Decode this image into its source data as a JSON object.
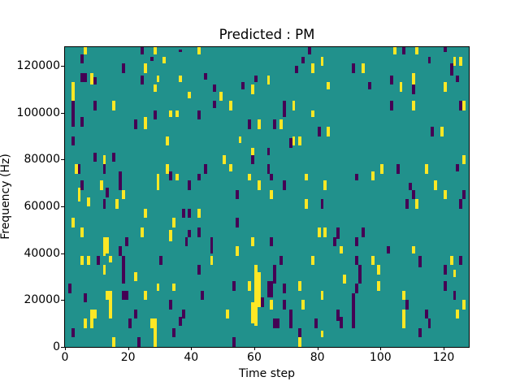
{
  "figure": {
    "title": "Predicted : PM",
    "xlabel": "Time step",
    "ylabel": "Frequency (Hz)"
  },
  "chart_data": {
    "type": "heatmap",
    "title": "Predicted : PM",
    "xlabel": "Time step",
    "ylabel": "Frequency (Hz)",
    "x_range": [
      0,
      128
    ],
    "y_range": [
      0,
      128000
    ],
    "x_ticks": [
      0,
      20,
      40,
      60,
      80,
      100,
      120
    ],
    "y_ticks": [
      0,
      20000,
      40000,
      60000,
      80000,
      100000,
      120000
    ],
    "grid": false,
    "legend_position": "none",
    "colors": {
      "background": "#21918c",
      "high": "#fde725",
      "low": "#440154"
    },
    "cells_format": "[time_step, freq_row_from_top (1 row = 1000 Hz, row 0 = 128000 Hz), row_span, value (1 = high/yellow, 0 = low/purple)]",
    "cells": [
      [
        6,
        0,
        3,
        1
      ],
      [
        28,
        0,
        3,
        1
      ],
      [
        31,
        4,
        3,
        1
      ],
      [
        25,
        7,
        4,
        1
      ],
      [
        8,
        11,
        5,
        1
      ],
      [
        29,
        12,
        3,
        1
      ],
      [
        36,
        12,
        3,
        1
      ],
      [
        2,
        15,
        8,
        1
      ],
      [
        28,
        16,
        3,
        1
      ],
      [
        39,
        19,
        3,
        1
      ],
      [
        15,
        23,
        4,
        1
      ],
      [
        33,
        27,
        3,
        1
      ],
      [
        35,
        27,
        3,
        1
      ],
      [
        5,
        31,
        3,
        1
      ],
      [
        25,
        30,
        5,
        1
      ],
      [
        32,
        38,
        4,
        1
      ],
      [
        24,
        0,
        3,
        0
      ],
      [
        36,
        1,
        1,
        0
      ],
      [
        5,
        3,
        4,
        0
      ],
      [
        27,
        4,
        2,
        0
      ],
      [
        18,
        7,
        4,
        0
      ],
      [
        5,
        11,
        4,
        0
      ],
      [
        6,
        11,
        4,
        0
      ],
      [
        24,
        12,
        4,
        0
      ],
      [
        9,
        13,
        3,
        0
      ],
      [
        2,
        23,
        11,
        0
      ],
      [
        9,
        23,
        4,
        0
      ],
      [
        28,
        27,
        4,
        0
      ],
      [
        5,
        30,
        4,
        0
      ],
      [
        22,
        31,
        4,
        0
      ],
      [
        2,
        38,
        4,
        0
      ],
      [
        42,
        0,
        3,
        1
      ],
      [
        81,
        4,
        4,
        1
      ],
      [
        78,
        7,
        4,
        1
      ],
      [
        64,
        12,
        4,
        1
      ],
      [
        59,
        16,
        4,
        1
      ],
      [
        49,
        19,
        4,
        1
      ],
      [
        52,
        23,
        4,
        1
      ],
      [
        72,
        23,
        4,
        1
      ],
      [
        83,
        15,
        3,
        1
      ],
      [
        78,
        27,
        3,
        1
      ],
      [
        61,
        31,
        4,
        1
      ],
      [
        68,
        31,
        4,
        1
      ],
      [
        83,
        34,
        4,
        1
      ],
      [
        72,
        38,
        4,
        1
      ],
      [
        74,
        38,
        4,
        1
      ],
      [
        55,
        38,
        3,
        1
      ],
      [
        77,
        0,
        3,
        0
      ],
      [
        75,
        4,
        3,
        0
      ],
      [
        73,
        8,
        3,
        0
      ],
      [
        44,
        11,
        3,
        0
      ],
      [
        47,
        16,
        3,
        0
      ],
      [
        56,
        15,
        3,
        0
      ],
      [
        60,
        12,
        3,
        0
      ],
      [
        47,
        23,
        3,
        0
      ],
      [
        69,
        23,
        7,
        0
      ],
      [
        42,
        27,
        4,
        0
      ],
      [
        58,
        31,
        4,
        0
      ],
      [
        66,
        31,
        4,
        0
      ],
      [
        80,
        34,
        4,
        0
      ],
      [
        71,
        39,
        4,
        0
      ],
      [
        104,
        0,
        3,
        1
      ],
      [
        111,
        0,
        3,
        1
      ],
      [
        123,
        4,
        4,
        1
      ],
      [
        125,
        4,
        4,
        1
      ],
      [
        94,
        7,
        4,
        1
      ],
      [
        110,
        11,
        5,
        1
      ],
      [
        106,
        15,
        4,
        1
      ],
      [
        120,
        15,
        4,
        1
      ],
      [
        110,
        23,
        4,
        1
      ],
      [
        126,
        23,
        4,
        1
      ],
      [
        119,
        34,
        4,
        1
      ],
      [
        107,
        0,
        3,
        0
      ],
      [
        120,
        0,
        2,
        0
      ],
      [
        115,
        4,
        3,
        0
      ],
      [
        91,
        7,
        4,
        0
      ],
      [
        122,
        7,
        5,
        0
      ],
      [
        103,
        12,
        4,
        0
      ],
      [
        96,
        15,
        3,
        0
      ],
      [
        124,
        12,
        3,
        0
      ],
      [
        110,
        16,
        4,
        0
      ],
      [
        103,
        23,
        4,
        0
      ],
      [
        125,
        23,
        4,
        0
      ],
      [
        116,
        34,
        4,
        0
      ],
      [
        12,
        46,
        4,
        1
      ],
      [
        3,
        50,
        4,
        1
      ],
      [
        11,
        57,
        4,
        1
      ],
      [
        4,
        60,
        6,
        1
      ],
      [
        18,
        61,
        4,
        1
      ],
      [
        16,
        65,
        4,
        1
      ],
      [
        7,
        64,
        4,
        1
      ],
      [
        32,
        50,
        4,
        1
      ],
      [
        29,
        54,
        7,
        1
      ],
      [
        35,
        54,
        3,
        1
      ],
      [
        25,
        69,
        4,
        1
      ],
      [
        2,
        73,
        4,
        1
      ],
      [
        5,
        77,
        4,
        1
      ],
      [
        24,
        77,
        4,
        1
      ],
      [
        34,
        73,
        4,
        1
      ],
      [
        33,
        78,
        5,
        1
      ],
      [
        12,
        81,
        4,
        1
      ],
      [
        13,
        81,
        4,
        1
      ],
      [
        9,
        45,
        4,
        0
      ],
      [
        15,
        45,
        4,
        0
      ],
      [
        4,
        50,
        4,
        0
      ],
      [
        12,
        50,
        4,
        0
      ],
      [
        17,
        53,
        8,
        0
      ],
      [
        5,
        57,
        4,
        0
      ],
      [
        13,
        60,
        4,
        0
      ],
      [
        12,
        65,
        4,
        0
      ],
      [
        33,
        53,
        4,
        0
      ],
      [
        39,
        57,
        4,
        0
      ],
      [
        37,
        69,
        4,
        0
      ],
      [
        39,
        69,
        4,
        0
      ],
      [
        39,
        78,
        3,
        0
      ],
      [
        19,
        81,
        4,
        0
      ],
      [
        38,
        81,
        4,
        0
      ],
      [
        59,
        43,
        3,
        1
      ],
      [
        50,
        46,
        4,
        1
      ],
      [
        52,
        50,
        3,
        1
      ],
      [
        58,
        54,
        3,
        1
      ],
      [
        61,
        57,
        4,
        1
      ],
      [
        65,
        61,
        4,
        1
      ],
      [
        76,
        54,
        3,
        1
      ],
      [
        82,
        57,
        4,
        1
      ],
      [
        76,
        65,
        4,
        1
      ],
      [
        42,
        69,
        4,
        1
      ],
      [
        80,
        77,
        4,
        1
      ],
      [
        82,
        77,
        4,
        1
      ],
      [
        59,
        81,
        4,
        1
      ],
      [
        64,
        43,
        3,
        0
      ],
      [
        59,
        46,
        4,
        0
      ],
      [
        44,
        50,
        4,
        0
      ],
      [
        42,
        54,
        3,
        0
      ],
      [
        64,
        50,
        4,
        0
      ],
      [
        65,
        54,
        3,
        0
      ],
      [
        69,
        57,
        4,
        0
      ],
      [
        54,
        61,
        4,
        0
      ],
      [
        81,
        65,
        4,
        0
      ],
      [
        54,
        73,
        4,
        0
      ],
      [
        42,
        77,
        4,
        0
      ],
      [
        46,
        81,
        4,
        0
      ],
      [
        65,
        81,
        4,
        0
      ],
      [
        126,
        46,
        4,
        1
      ],
      [
        100,
        50,
        4,
        1
      ],
      [
        114,
        50,
        4,
        1
      ],
      [
        97,
        53,
        4,
        1
      ],
      [
        117,
        57,
        4,
        1
      ],
      [
        120,
        61,
        4,
        1
      ],
      [
        111,
        65,
        4,
        1
      ],
      [
        92,
        54,
        3,
        0
      ],
      [
        105,
        50,
        4,
        0
      ],
      [
        124,
        50,
        3,
        0
      ],
      [
        109,
        58,
        3,
        0
      ],
      [
        110,
        61,
        4,
        0
      ],
      [
        108,
        65,
        4,
        0
      ],
      [
        126,
        61,
        4,
        0
      ],
      [
        125,
        65,
        4,
        0
      ],
      [
        86,
        77,
        5,
        0
      ],
      [
        94,
        77,
        4,
        0
      ],
      [
        92,
        81,
        4,
        0
      ],
      [
        85,
        81,
        4,
        0
      ],
      [
        12,
        85,
        4,
        1
      ],
      [
        13,
        85,
        3,
        1
      ],
      [
        5,
        89,
        4,
        1
      ],
      [
        7,
        89,
        4,
        1
      ],
      [
        14,
        89,
        3,
        1
      ],
      [
        12,
        93,
        4,
        1
      ],
      [
        22,
        96,
        4,
        1
      ],
      [
        13,
        104,
        4,
        1
      ],
      [
        14,
        104,
        12,
        1
      ],
      [
        8,
        112,
        4,
        1
      ],
      [
        9,
        112,
        4,
        1
      ],
      [
        6,
        116,
        4,
        1
      ],
      [
        8,
        116,
        4,
        1
      ],
      [
        25,
        104,
        4,
        1
      ],
      [
        29,
        101,
        3,
        1
      ],
      [
        34,
        101,
        3,
        1
      ],
      [
        27,
        116,
        4,
        1
      ],
      [
        28,
        116,
        12,
        1
      ],
      [
        15,
        124,
        4,
        1
      ],
      [
        17,
        85,
        4,
        0
      ],
      [
        10,
        89,
        4,
        0
      ],
      [
        18,
        89,
        4,
        0
      ],
      [
        30,
        89,
        4,
        0
      ],
      [
        18,
        93,
        4,
        0
      ],
      [
        18,
        97,
        4,
        0
      ],
      [
        1,
        101,
        4,
        0
      ],
      [
        6,
        105,
        4,
        0
      ],
      [
        18,
        104,
        4,
        0
      ],
      [
        19,
        104,
        4,
        0
      ],
      [
        33,
        108,
        4,
        0
      ],
      [
        20,
        116,
        4,
        0
      ],
      [
        22,
        112,
        4,
        0
      ],
      [
        37,
        112,
        4,
        0
      ],
      [
        36,
        115,
        4,
        0
      ],
      [
        2,
        120,
        4,
        0
      ],
      [
        34,
        120,
        4,
        0
      ],
      [
        23,
        124,
        4,
        0
      ],
      [
        42,
        93,
        4,
        0
      ],
      [
        54,
        85,
        4,
        1
      ],
      [
        46,
        89,
        4,
        1
      ],
      [
        78,
        89,
        4,
        1
      ],
      [
        60,
        93,
        26,
        1
      ],
      [
        61,
        96,
        15,
        1
      ],
      [
        59,
        109,
        9,
        1
      ],
      [
        58,
        100,
        4,
        1
      ],
      [
        74,
        100,
        4,
        1
      ],
      [
        65,
        108,
        4,
        1
      ],
      [
        75,
        108,
        4,
        1
      ],
      [
        51,
        112,
        4,
        1
      ],
      [
        81,
        104,
        4,
        1
      ],
      [
        81,
        121,
        3,
        1
      ],
      [
        74,
        124,
        4,
        1
      ],
      [
        46,
        85,
        3,
        0
      ],
      [
        68,
        89,
        4,
        0
      ],
      [
        66,
        93,
        8,
        0
      ],
      [
        64,
        100,
        7,
        0
      ],
      [
        65,
        100,
        7,
        0
      ],
      [
        53,
        100,
        4,
        0
      ],
      [
        69,
        101,
        4,
        0
      ],
      [
        43,
        104,
        4,
        0
      ],
      [
        62,
        107,
        4,
        0
      ],
      [
        69,
        108,
        4,
        0
      ],
      [
        71,
        112,
        8,
        0
      ],
      [
        66,
        116,
        4,
        0
      ],
      [
        67,
        116,
        4,
        0
      ],
      [
        79,
        116,
        4,
        0
      ],
      [
        74,
        120,
        4,
        0
      ],
      [
        53,
        124,
        4,
        0
      ],
      [
        87,
        85,
        3,
        1
      ],
      [
        110,
        85,
        3,
        1
      ],
      [
        97,
        89,
        4,
        1
      ],
      [
        122,
        89,
        4,
        1
      ],
      [
        99,
        93,
        4,
        1
      ],
      [
        123,
        95,
        3,
        1
      ],
      [
        88,
        97,
        4,
        1
      ],
      [
        99,
        100,
        4,
        1
      ],
      [
        107,
        104,
        4,
        1
      ],
      [
        126,
        108,
        4,
        1
      ],
      [
        124,
        112,
        4,
        1
      ],
      [
        107,
        112,
        8,
        1
      ],
      [
        92,
        89,
        4,
        0
      ],
      [
        93,
        93,
        8,
        0
      ],
      [
        102,
        85,
        3,
        0
      ],
      [
        112,
        89,
        5,
        0
      ],
      [
        125,
        89,
        4,
        0
      ],
      [
        120,
        93,
        4,
        0
      ],
      [
        92,
        101,
        4,
        0
      ],
      [
        91,
        105,
        4,
        0
      ],
      [
        120,
        100,
        4,
        0
      ],
      [
        123,
        104,
        4,
        0
      ],
      [
        91,
        108,
        4,
        0
      ],
      [
        108,
        108,
        4,
        0
      ],
      [
        86,
        112,
        5,
        0
      ],
      [
        91,
        112,
        8,
        0
      ],
      [
        87,
        115,
        5,
        0
      ],
      [
        114,
        112,
        4,
        0
      ],
      [
        115,
        116,
        4,
        0
      ],
      [
        112,
        120,
        4,
        0
      ]
    ]
  }
}
